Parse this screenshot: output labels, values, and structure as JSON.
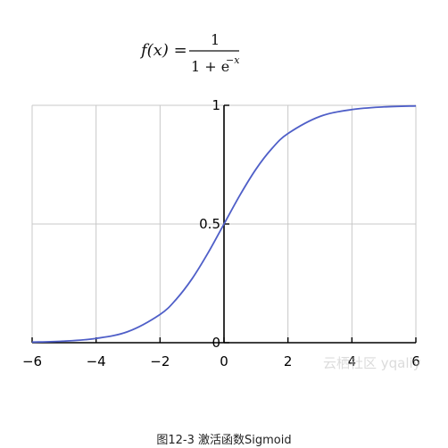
{
  "formula": {
    "lhs": "f(x) =",
    "numerator": "1",
    "denominator_prefix": "1 + e",
    "exponent": "−x"
  },
  "watermark": "云栖社区 yqaliy",
  "caption": "图12-3 激活函数Sigmoid",
  "colors": {
    "curve": "#4f5fc8",
    "grid": "#c8c8c8",
    "axis": "#000000"
  },
  "chart_data": {
    "type": "line",
    "title": "",
    "xlabel": "",
    "ylabel": "",
    "xlim": [
      -6,
      6
    ],
    "ylim": [
      0,
      1
    ],
    "grid": true,
    "x_ticks": [
      -6,
      -4,
      -2,
      0,
      2,
      4,
      6
    ],
    "x_tick_labels": [
      "−6",
      "−4",
      "−2",
      "0",
      "2",
      "4",
      "6"
    ],
    "y_ticks": [
      0,
      0.5,
      1
    ],
    "y_tick_labels": [
      "0",
      "0.5",
      "1"
    ],
    "series": [
      {
        "x": [
          -6,
          -5,
          -4,
          -3,
          -2,
          -1.5,
          -1,
          -0.5,
          0,
          0.5,
          1,
          1.5,
          2,
          3,
          4,
          5,
          6
        ],
        "y": [
          0.0025,
          0.0067,
          0.018,
          0.047,
          0.119,
          0.182,
          0.269,
          0.378,
          0.5,
          0.622,
          0.731,
          0.818,
          0.881,
          0.953,
          0.982,
          0.9933,
          0.9975
        ]
      }
    ]
  }
}
